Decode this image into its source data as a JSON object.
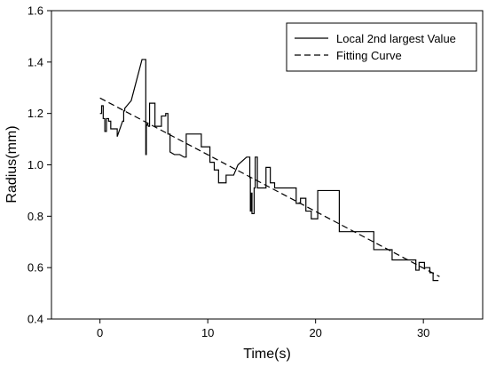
{
  "chart_data": {
    "type": "line",
    "title": "",
    "xlabel": "Time(s)",
    "ylabel": "Radius(mm)",
    "xlim": [
      -4.5,
      35.5
    ],
    "ylim": [
      0.4,
      1.6
    ],
    "xticks": [
      0,
      10,
      20,
      30
    ],
    "xtick_labels": [
      "0",
      "10",
      "20",
      "30"
    ],
    "yticks": [
      0.4,
      0.6,
      0.8,
      1.0,
      1.2,
      1.4,
      1.6
    ],
    "ytick_labels": [
      "0.4",
      "0.6",
      "0.8",
      "1.0",
      "1.2",
      "1.4",
      "1.6"
    ],
    "grid": false,
    "legend_position": "top-right",
    "series": [
      {
        "name": "Local 2nd largest Value",
        "style": "solid",
        "color": "#000000",
        "x": [
          0.0,
          0.15,
          0.15,
          0.3,
          0.3,
          0.45,
          0.45,
          0.6,
          0.6,
          0.8,
          0.8,
          1.0,
          1.0,
          1.6,
          1.6,
          2.1,
          2.2,
          2.2,
          2.3,
          2.3,
          2.9,
          3.4,
          3.9,
          4.2,
          4.25,
          4.25,
          4.3,
          4.3,
          4.4,
          4.5,
          4.6,
          4.6,
          5.1,
          5.1,
          5.7,
          5.7,
          6.1,
          6.1,
          6.3,
          6.3,
          6.5,
          6.5,
          6.9,
          7.4,
          7.8,
          8.0,
          8.0,
          9.4,
          9.4,
          10.2,
          10.2,
          10.6,
          10.6,
          11.0,
          11.0,
          11.7,
          11.7,
          12.4,
          12.8,
          13.6,
          13.9,
          13.9,
          13.95,
          13.95,
          14.0,
          14.0,
          14.1,
          14.1,
          14.3,
          14.3,
          14.4,
          14.4,
          14.6,
          14.6,
          15.4,
          15.4,
          15.8,
          15.8,
          16.2,
          16.2,
          18.2,
          18.2,
          18.6,
          18.6,
          19.1,
          19.1,
          19.6,
          19.6,
          20.2,
          20.2,
          20.6,
          20.6,
          22.2,
          22.2,
          24.0,
          24.0,
          25.4,
          25.4,
          26.2,
          26.2,
          27.1,
          27.1,
          28.7,
          28.7,
          29.3,
          29.3,
          29.6,
          29.6,
          30.1,
          30.1,
          30.6,
          30.6,
          30.9,
          30.9,
          31.4
        ],
        "y": [
          1.2,
          1.2,
          1.23,
          1.23,
          1.18,
          1.18,
          1.13,
          1.13,
          1.18,
          1.18,
          1.17,
          1.17,
          1.14,
          1.14,
          1.11,
          1.17,
          1.17,
          1.21,
          1.21,
          1.22,
          1.25,
          1.33,
          1.41,
          1.41,
          1.41,
          1.04,
          1.04,
          1.15,
          1.16,
          1.15,
          1.15,
          1.24,
          1.24,
          1.15,
          1.15,
          1.19,
          1.19,
          1.2,
          1.2,
          1.12,
          1.12,
          1.05,
          1.04,
          1.04,
          1.03,
          1.03,
          1.12,
          1.12,
          1.07,
          1.07,
          1.01,
          1.01,
          0.98,
          0.98,
          0.93,
          0.93,
          0.96,
          0.96,
          1.0,
          1.03,
          1.03,
          0.95,
          0.95,
          0.82,
          0.82,
          0.89,
          0.89,
          0.81,
          0.81,
          0.91,
          0.91,
          1.03,
          1.03,
          0.91,
          0.91,
          0.99,
          0.99,
          0.93,
          0.93,
          0.91,
          0.91,
          0.85,
          0.85,
          0.87,
          0.87,
          0.82,
          0.82,
          0.79,
          0.79,
          0.9,
          0.9,
          0.9,
          0.9,
          0.74,
          0.74,
          0.74,
          0.74,
          0.67,
          0.67,
          0.67,
          0.67,
          0.63,
          0.63,
          0.63,
          0.63,
          0.59,
          0.59,
          0.62,
          0.62,
          0.6,
          0.6,
          0.58,
          0.58,
          0.55,
          0.55
        ]
      },
      {
        "name": "Fitting Curve",
        "style": "dashed",
        "color": "#000000",
        "x": [
          0,
          31.5
        ],
        "y": [
          1.26,
          0.565
        ]
      }
    ]
  }
}
